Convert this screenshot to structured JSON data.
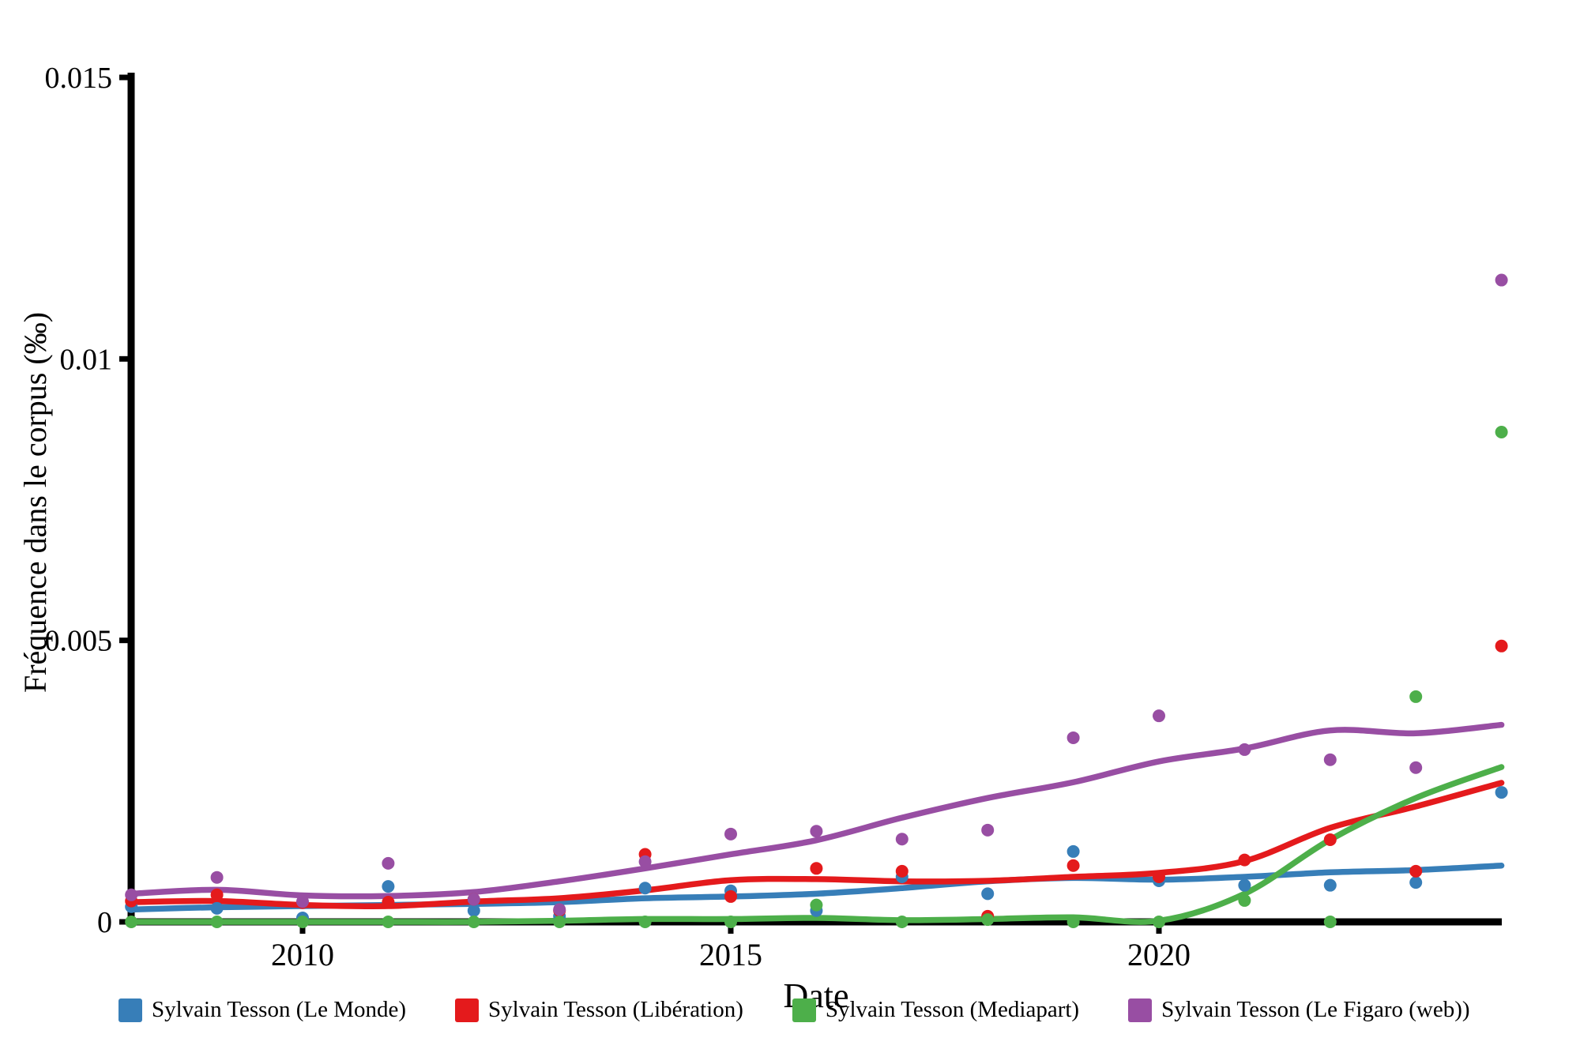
{
  "chart_data": {
    "type": "scatter",
    "title": "",
    "xlabel": "Date",
    "ylabel": "Fréquence dans le corpus (‰)",
    "x": [
      2008,
      2009,
      2010,
      2011,
      2012,
      2013,
      2014,
      2015,
      2016,
      2017,
      2018,
      2019,
      2020,
      2021,
      2022,
      2023,
      2024
    ],
    "xlim": [
      2008,
      2024
    ],
    "ylim": [
      0,
      0.015
    ],
    "x_ticks": [
      2010,
      2015,
      2020
    ],
    "x_tick_labels": [
      "2010",
      "2015",
      "2020"
    ],
    "y_ticks": [
      0,
      0.005,
      0.01,
      0.015
    ],
    "y_tick_labels": [
      "0",
      "0.005",
      "0.01",
      "0.015"
    ],
    "grid": false,
    "legend_position": "bottom",
    "series": [
      {
        "name": "Sylvain Tesson (Le Monde)",
        "slug": "le-monde",
        "color": "#377eb8",
        "points": [
          0.00027,
          0.00024,
          7e-05,
          0.00063,
          0.0002,
          0.0001,
          0.0006,
          0.00055,
          0.0002,
          0.0008,
          0.0005,
          0.00125,
          0.00073,
          0.00065,
          0.00065,
          0.0007,
          0.0023
        ],
        "trend": [
          0.00022,
          0.00026,
          0.00028,
          0.0003,
          0.00032,
          0.00035,
          0.00042,
          0.00045,
          0.0005,
          0.0006,
          0.00072,
          0.00078,
          0.00075,
          0.0008,
          0.00088,
          0.00092,
          0.001
        ]
      },
      {
        "name": "Sylvain Tesson (Libération)",
        "slug": "liberation",
        "color": "#e41a1c",
        "points": [
          0.00037,
          0.00048,
          0.00034,
          0.00035,
          0.0004,
          0.0002,
          0.0012,
          0.00045,
          0.00095,
          0.0009,
          0.0001,
          0.001,
          0.0008,
          0.0011,
          0.00146,
          0.0009,
          0.0049
        ],
        "trend": [
          0.00035,
          0.00037,
          0.0003,
          0.00028,
          0.00036,
          0.00042,
          0.00056,
          0.00074,
          0.00076,
          0.00072,
          0.00073,
          0.0008,
          0.00087,
          0.00108,
          0.00167,
          0.00205,
          0.00247
        ]
      },
      {
        "name": "Sylvain Tesson (Mediapart)",
        "slug": "mediapart",
        "color": "#4daf4a",
        "points": [
          0,
          0,
          0,
          0,
          0,
          0,
          0,
          0,
          0.0003,
          0,
          4e-05,
          0,
          0,
          0.00038,
          0,
          0.004,
          0.0087
        ],
        "trend": [
          0,
          0,
          0,
          0,
          0,
          2e-05,
          5e-05,
          5e-05,
          7e-05,
          3e-05,
          5e-05,
          8e-05,
          2e-05,
          0.0005,
          0.00146,
          0.0022,
          0.00275
        ]
      },
      {
        "name": "Sylvain Tesson (Le Figaro (web))",
        "slug": "le-figaro-web",
        "color": "#984ea3",
        "points": [
          0.00048,
          0.00079,
          0.00036,
          0.00104,
          0.0004,
          0.00022,
          0.00107,
          0.00156,
          0.00161,
          0.00147,
          0.00163,
          0.00327,
          0.00366,
          0.00306,
          0.00288,
          0.00274,
          0.0114
        ],
        "trend": [
          0.0005,
          0.00057,
          0.00047,
          0.00046,
          0.00053,
          0.00072,
          0.00095,
          0.0012,
          0.00145,
          0.00185,
          0.0022,
          0.00248,
          0.00285,
          0.00308,
          0.0034,
          0.00335,
          0.0035
        ]
      }
    ]
  },
  "axis_style": {
    "axis_color": "#000000",
    "background": "#ffffff"
  }
}
